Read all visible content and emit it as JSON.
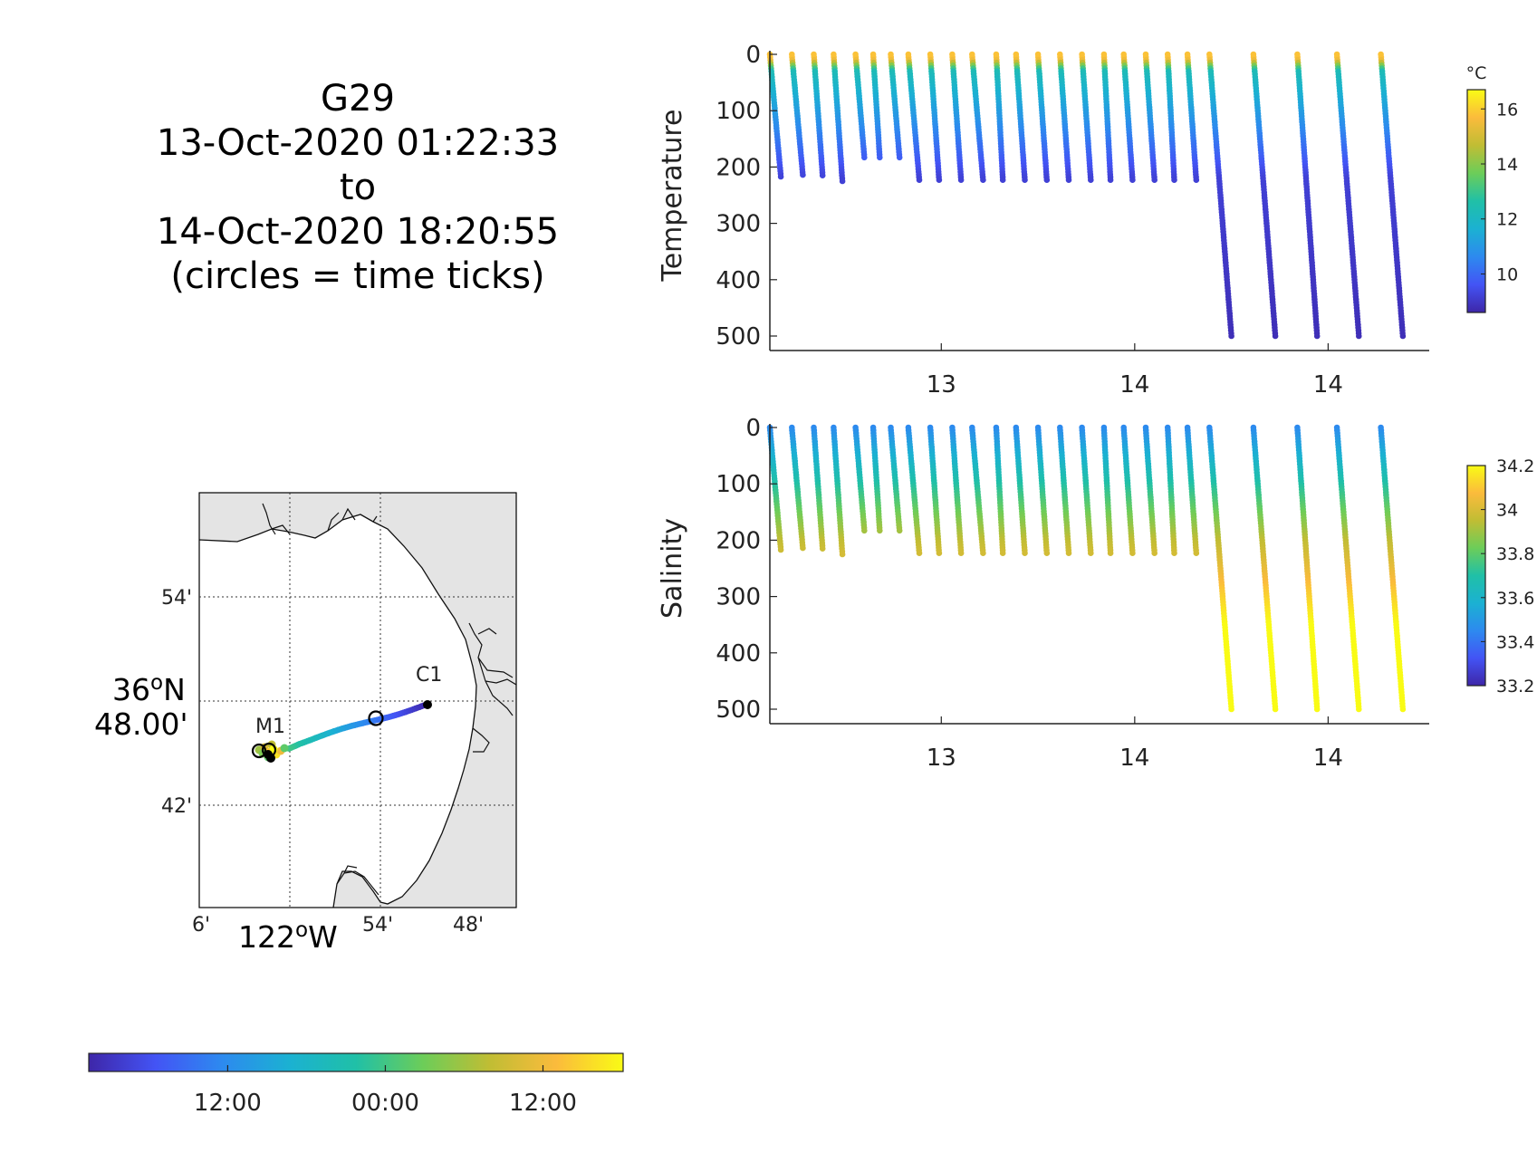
{
  "title": {
    "lines": [
      "G29",
      "13-Oct-2020 01:22:33",
      "to",
      "14-Oct-2020 18:20:55",
      "(circles = time ticks)"
    ]
  },
  "colormap": [
    "#3e26a8",
    "#4354f5",
    "#2d8aef",
    "#1bb1d2",
    "#20c0a7",
    "#6ccd59",
    "#c0bd34",
    "#fbbb3c",
    "#f9fb15"
  ],
  "time_colorbar": {
    "ticks": [
      {
        "label": "12:00",
        "frac": 0.26
      },
      {
        "label": "00:00",
        "frac": 0.555
      },
      {
        "label": "12:00",
        "frac": 0.85
      }
    ]
  },
  "map": {
    "lat_labels": [
      {
        "label": "54'",
        "value": 54
      },
      {
        "label": "42'",
        "value": 42
      }
    ],
    "lat_main": {
      "line1": "36",
      "sup": "o",
      "line1b": "N",
      "line2": "48.00'",
      "value": 48
    },
    "lon_labels": [
      {
        "label": "6'",
        "value": 6
      },
      {
        "label": "54'",
        "value": 54
      },
      {
        "label": "48'",
        "value": 48
      }
    ],
    "lon_main": {
      "line1": "122",
      "sup": "o",
      "line1b": "W"
    },
    "stations": [
      {
        "name": "M1"
      },
      {
        "name": "C1"
      }
    ],
    "track_colors": "time",
    "land_color": "#e4e4e4",
    "water_color": "#ffffff"
  },
  "chart_data": [
    {
      "type": "scatter",
      "title": "",
      "ylabel": "Temperature",
      "xlabel": "",
      "x_tick_labels": [
        "13",
        "14",
        "14"
      ],
      "x_ticks": [
        13.0,
        13.88,
        14.76
      ],
      "xlim": [
        12.22,
        15.22
      ],
      "ylim": [
        500,
        0
      ],
      "y_ticks": [
        0,
        100,
        200,
        300,
        400,
        500
      ],
      "colorbar": {
        "unit": "°C",
        "ticks": [
          10,
          12,
          14,
          16
        ],
        "clim": [
          8.6,
          16.7
        ]
      },
      "profiles": [
        {
          "x0": 12.22,
          "x1": 12.27,
          "depth": 217
        },
        {
          "x0": 12.32,
          "x1": 12.37,
          "depth": 214
        },
        {
          "x0": 12.42,
          "x1": 12.46,
          "depth": 215
        },
        {
          "x0": 12.51,
          "x1": 12.55,
          "depth": 225
        },
        {
          "x0": 12.61,
          "x1": 12.65,
          "depth": 183
        },
        {
          "x0": 12.69,
          "x1": 12.72,
          "depth": 183
        },
        {
          "x0": 12.77,
          "x1": 12.81,
          "depth": 183
        },
        {
          "x0": 12.85,
          "x1": 12.9,
          "depth": 223
        },
        {
          "x0": 12.95,
          "x1": 12.99,
          "depth": 223
        },
        {
          "x0": 13.05,
          "x1": 13.09,
          "depth": 223
        },
        {
          "x0": 13.14,
          "x1": 13.19,
          "depth": 223
        },
        {
          "x0": 13.25,
          "x1": 13.28,
          "depth": 223
        },
        {
          "x0": 13.34,
          "x1": 13.38,
          "depth": 223
        },
        {
          "x0": 13.44,
          "x1": 13.48,
          "depth": 223
        },
        {
          "x0": 13.54,
          "x1": 13.58,
          "depth": 223
        },
        {
          "x0": 13.64,
          "x1": 13.68,
          "depth": 223
        },
        {
          "x0": 13.74,
          "x1": 13.77,
          "depth": 223
        },
        {
          "x0": 13.83,
          "x1": 13.87,
          "depth": 223
        },
        {
          "x0": 13.93,
          "x1": 13.97,
          "depth": 223
        },
        {
          "x0": 14.03,
          "x1": 14.06,
          "depth": 223
        },
        {
          "x0": 14.12,
          "x1": 14.16,
          "depth": 223
        },
        {
          "x0": 14.22,
          "x1": 14.32,
          "depth": 500
        },
        {
          "x0": 14.42,
          "x1": 14.52,
          "depth": 500
        },
        {
          "x0": 14.62,
          "x1": 14.71,
          "depth": 500
        },
        {
          "x0": 14.8,
          "x1": 14.9,
          "depth": 500
        },
        {
          "x0": 15.0,
          "x1": 15.1,
          "depth": 500
        }
      ],
      "profile_values": {
        "surface": 15.8,
        "near_surface": 12.3,
        "deep": 9.2,
        "bottom": 8.8
      }
    },
    {
      "type": "scatter",
      "title": "",
      "ylabel": "Salinity",
      "xlabel": "",
      "x_tick_labels": [
        "13",
        "14",
        "14"
      ],
      "x_ticks": [
        13.0,
        13.88,
        14.76
      ],
      "xlim": [
        12.22,
        15.22
      ],
      "ylim": [
        500,
        0
      ],
      "y_ticks": [
        0,
        100,
        200,
        300,
        400,
        500
      ],
      "colorbar": {
        "unit": "",
        "ticks": [
          33.2,
          33.4,
          33.6,
          33.8,
          34,
          34.2
        ],
        "tick_labels": [
          "33.2",
          "33.4",
          "33.6",
          "33.8",
          "34",
          "34.2"
        ],
        "clim": [
          33.2,
          34.2
        ]
      },
      "profiles": "same_as_temperature",
      "profile_values": {
        "surface": 33.45,
        "at_200m": 33.95,
        "bottom": 34.2
      }
    }
  ]
}
